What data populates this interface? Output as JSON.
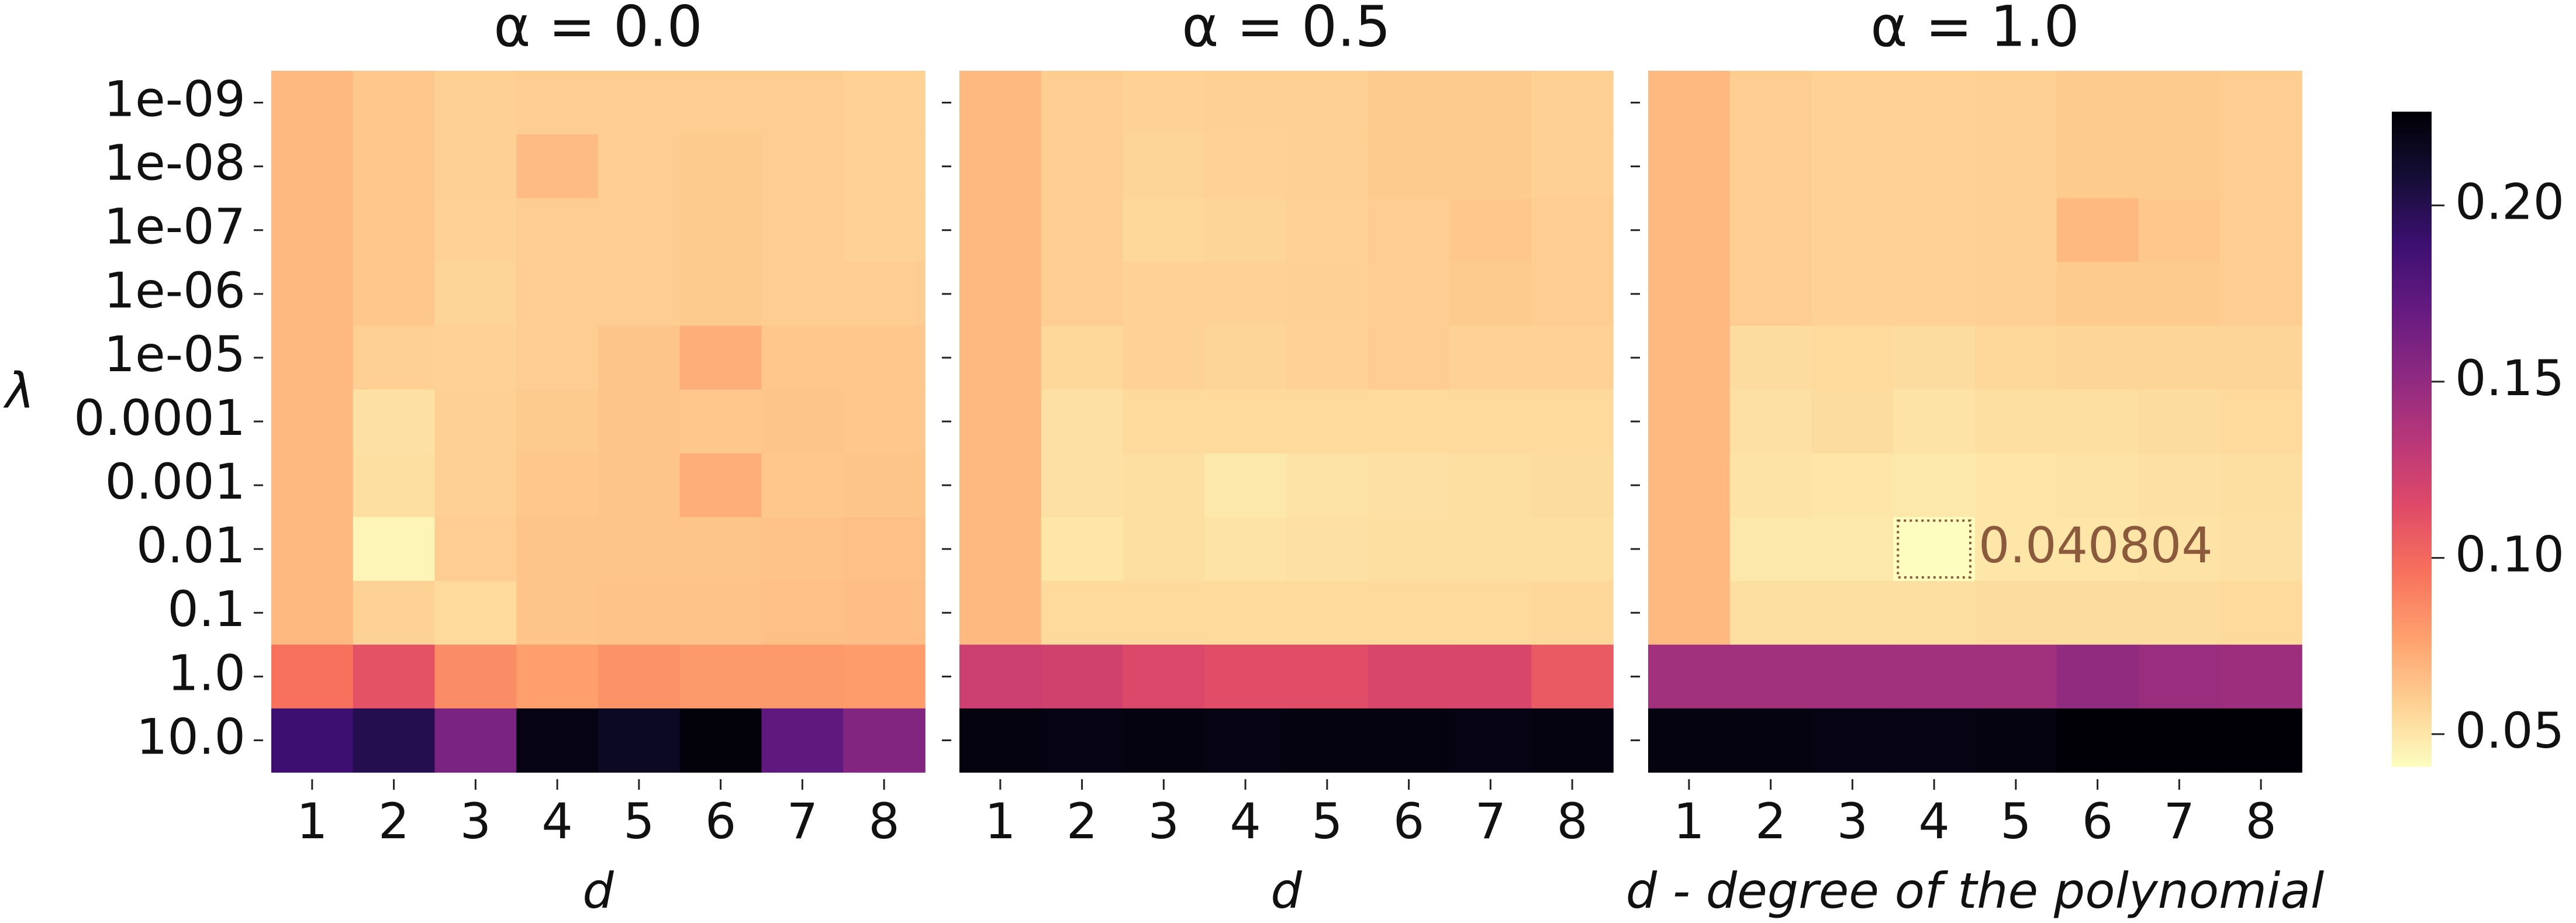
{
  "chart_data": [
    {
      "type": "heatmap",
      "title": "α = 0.0",
      "x_label": "d",
      "y_label": "λ",
      "categories": [
        "1",
        "2",
        "3",
        "4",
        "5",
        "6",
        "7",
        "8"
      ],
      "y_categories": [
        "1e-09",
        "1e-08",
        "1e-07",
        "1e-06",
        "1e-05",
        "0.0001",
        "0.001",
        "0.01",
        "0.1",
        "1.0",
        "10.0"
      ],
      "values": [
        [
          0.068,
          0.062,
          0.059,
          0.06,
          0.06,
          0.06,
          0.06,
          0.058
        ],
        [
          0.068,
          0.062,
          0.059,
          0.067,
          0.06,
          0.061,
          0.06,
          0.058
        ],
        [
          0.068,
          0.062,
          0.058,
          0.06,
          0.06,
          0.061,
          0.06,
          0.058
        ],
        [
          0.068,
          0.062,
          0.057,
          0.06,
          0.06,
          0.061,
          0.06,
          0.06
        ],
        [
          0.068,
          0.059,
          0.058,
          0.06,
          0.063,
          0.072,
          0.062,
          0.062
        ],
        [
          0.068,
          0.052,
          0.059,
          0.061,
          0.063,
          0.062,
          0.063,
          0.062
        ],
        [
          0.068,
          0.053,
          0.059,
          0.062,
          0.063,
          0.072,
          0.062,
          0.063
        ],
        [
          0.068,
          0.044,
          0.06,
          0.063,
          0.063,
          0.063,
          0.064,
          0.065
        ],
        [
          0.068,
          0.058,
          0.055,
          0.063,
          0.064,
          0.064,
          0.065,
          0.066
        ],
        [
          0.096,
          0.111,
          0.085,
          0.078,
          0.083,
          0.08,
          0.08,
          0.079
        ],
        [
          0.189,
          0.2,
          0.16,
          0.221,
          0.215,
          0.224,
          0.173,
          0.157
        ]
      ]
    },
    {
      "type": "heatmap",
      "title": "α = 0.5",
      "x_label": "d",
      "categories": [
        "1",
        "2",
        "3",
        "4",
        "5",
        "6",
        "7",
        "8"
      ],
      "y_categories": [
        null,
        null,
        null,
        null,
        null,
        null,
        null,
        null,
        null,
        null,
        null
      ],
      "values": [
        [
          0.068,
          0.06,
          0.058,
          0.059,
          0.059,
          0.061,
          0.061,
          0.059
        ],
        [
          0.068,
          0.06,
          0.057,
          0.058,
          0.059,
          0.061,
          0.061,
          0.059
        ],
        [
          0.068,
          0.06,
          0.056,
          0.057,
          0.058,
          0.06,
          0.062,
          0.06
        ],
        [
          0.068,
          0.06,
          0.058,
          0.058,
          0.059,
          0.06,
          0.061,
          0.06
        ],
        [
          0.068,
          0.056,
          0.058,
          0.057,
          0.058,
          0.06,
          0.058,
          0.058
        ],
        [
          0.068,
          0.052,
          0.055,
          0.055,
          0.055,
          0.055,
          0.055,
          0.055
        ],
        [
          0.068,
          0.052,
          0.053,
          0.049,
          0.051,
          0.052,
          0.053,
          0.054
        ],
        [
          0.068,
          0.05,
          0.053,
          0.051,
          0.052,
          0.053,
          0.053,
          0.053
        ],
        [
          0.068,
          0.055,
          0.055,
          0.055,
          0.055,
          0.055,
          0.055,
          0.056
        ],
        [
          0.124,
          0.122,
          0.116,
          0.113,
          0.113,
          0.118,
          0.118,
          0.107
        ],
        [
          0.222,
          0.221,
          0.222,
          0.221,
          0.222,
          0.222,
          0.221,
          0.222
        ]
      ]
    },
    {
      "type": "heatmap",
      "title": "α = 1.0",
      "x_label": "d - degree of the polynomial",
      "categories": [
        "1",
        "2",
        "3",
        "4",
        "5",
        "6",
        "7",
        "8"
      ],
      "y_categories": [
        null,
        null,
        null,
        null,
        null,
        null,
        null,
        null,
        null,
        null,
        null
      ],
      "annotate_min": true,
      "values": [
        [
          0.068,
          0.06,
          0.058,
          0.058,
          0.059,
          0.061,
          0.061,
          0.06
        ],
        [
          0.068,
          0.06,
          0.058,
          0.058,
          0.059,
          0.061,
          0.061,
          0.06
        ],
        [
          0.068,
          0.06,
          0.058,
          0.058,
          0.059,
          0.068,
          0.062,
          0.06
        ],
        [
          0.068,
          0.06,
          0.058,
          0.058,
          0.059,
          0.061,
          0.061,
          0.06
        ],
        [
          0.068,
          0.054,
          0.055,
          0.054,
          0.056,
          0.057,
          0.057,
          0.057
        ],
        [
          0.068,
          0.052,
          0.054,
          0.051,
          0.053,
          0.053,
          0.054,
          0.055
        ],
        [
          0.068,
          0.051,
          0.05,
          0.049,
          0.05,
          0.051,
          0.052,
          0.053
        ],
        [
          0.068,
          0.049,
          0.049,
          0.040804,
          0.05,
          0.05,
          0.051,
          0.052
        ],
        [
          0.068,
          0.053,
          0.053,
          0.053,
          0.054,
          0.054,
          0.054,
          0.055
        ],
        [
          0.143,
          0.143,
          0.143,
          0.143,
          0.143,
          0.15,
          0.146,
          0.145
        ],
        [
          0.222,
          0.222,
          0.221,
          0.221,
          0.222,
          0.226,
          0.226,
          0.226
        ]
      ]
    },
    {
      "type": "colorbar",
      "colormap": "magma_r",
      "clim": [
        0.0407,
        0.2266
      ],
      "cticks": [
        0.05,
        {
          "value": 0.1,
          "label": "0.10"
        },
        0.15,
        {
          "value": 0.2,
          "label": "0.20"
        }
      ]
    }
  ]
}
